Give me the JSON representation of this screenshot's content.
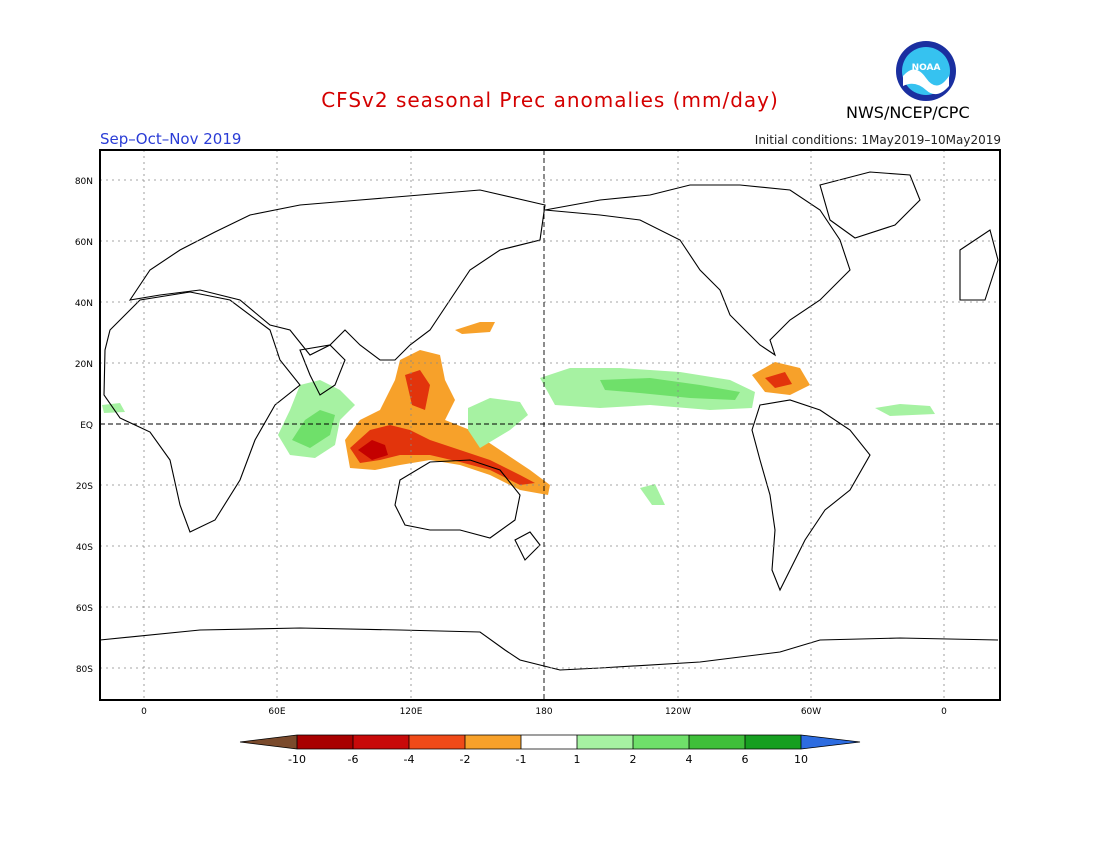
{
  "header": {
    "title": "CFSv2 seasonal Prec anomalies (mm/day)",
    "agency": "NWS/NCEP/CPC",
    "logo_text": "NOAA",
    "season": "Sep–Oct–Nov 2019",
    "initial_conditions": "Initial conditions: 1May2019–10May2019"
  },
  "colors": {
    "title": "#d40000",
    "season": "#2a3cd6",
    "land_outline": "#000000",
    "grid": "#777777",
    "dry_strong": "#c40000",
    "dry_moderate": "#e2340c",
    "dry_weak": "#f7a12a",
    "wet_weak": "#8ee88e",
    "wet_moderate": "#58d058"
  },
  "map": {
    "lat_labels": [
      "80N",
      "60N",
      "40N",
      "20N",
      "EQ",
      "20S",
      "40S",
      "60S",
      "80S"
    ],
    "lon_labels": [
      "0",
      "60E",
      "120E",
      "180",
      "120W",
      "60W",
      "0"
    ]
  },
  "legend": {
    "bins": [
      {
        "color": "#7a4a2c"
      },
      {
        "color": "#a80000"
      },
      {
        "color": "#c80a0a"
      },
      {
        "color": "#f04a18"
      },
      {
        "color": "#f7a12a"
      },
      {
        "color": "#ffffff"
      },
      {
        "color": "#a6f2a2"
      },
      {
        "color": "#6fe06a"
      },
      {
        "color": "#3fbf3a"
      },
      {
        "color": "#169f20"
      },
      {
        "color": "#2d6ce0"
      }
    ],
    "tick_labels": [
      "-10",
      "-6",
      "-4",
      "-2",
      "-1",
      "1",
      "2",
      "4",
      "6",
      "10"
    ]
  }
}
